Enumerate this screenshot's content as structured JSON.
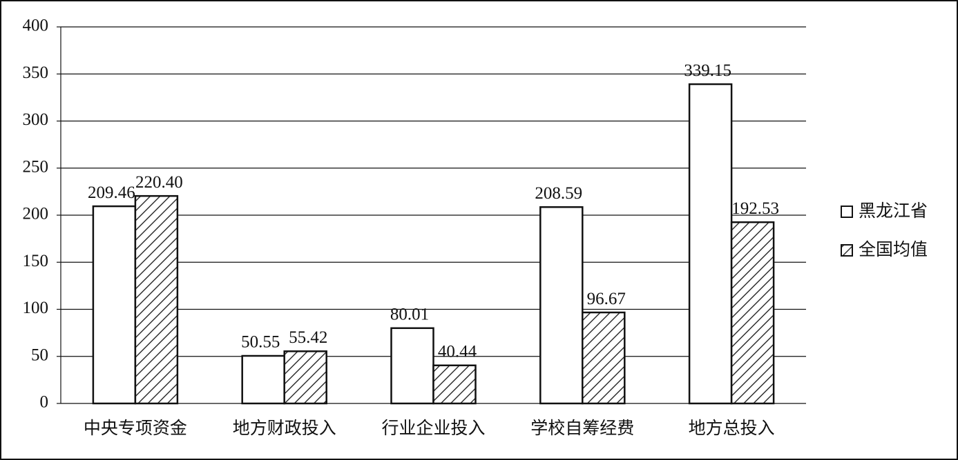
{
  "chart_data": {
    "type": "bar",
    "categories": [
      "中央专项资金",
      "地方财政投入",
      "行业企业投入",
      "学校自筹经费",
      "地方总投入"
    ],
    "series": [
      {
        "name": "黑龙江省",
        "color": "#ffffff",
        "pattern": "none",
        "values": [
          209.46,
          50.55,
          80.01,
          208.59,
          339.15
        ],
        "value_labels": [
          "209.46",
          "50.55",
          "80.01",
          "208.59",
          "339.15"
        ]
      },
      {
        "name": "全国均值",
        "color": "#ffffff",
        "pattern": "diagonal",
        "values": [
          220.4,
          55.42,
          40.44,
          96.67,
          192.53
        ],
        "value_labels": [
          "220.40",
          "55.42",
          "40.44",
          "96.67",
          "192.53"
        ]
      }
    ],
    "ylim": [
      0,
      400
    ],
    "yticks": [
      0,
      50,
      100,
      150,
      200,
      250,
      300,
      350,
      400
    ],
    "grid": true,
    "legend": "right"
  }
}
